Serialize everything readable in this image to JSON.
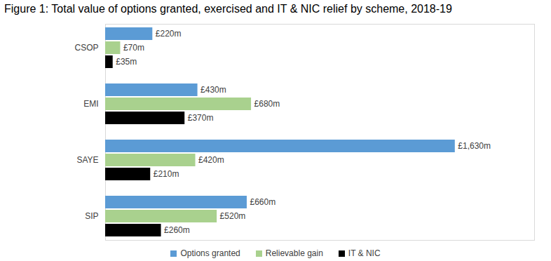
{
  "chart_data": {
    "type": "bar",
    "orientation": "horizontal",
    "title": "Figure 1: Total value of options granted, exercised and IT & NIC relief by scheme, 2018-19",
    "categories": [
      "CSOP",
      "EMI",
      "SAYE",
      "SIP"
    ],
    "series": [
      {
        "name": "Options granted",
        "color": "#5b9bd5",
        "values": [
          220,
          430,
          1630,
          660
        ],
        "value_labels": [
          "£220m",
          "£430m",
          "£1,630m",
          "£660m"
        ]
      },
      {
        "name": "Relievable gain",
        "color": "#a9d18e",
        "values": [
          70,
          680,
          420,
          520
        ],
        "value_labels": [
          "£70m",
          "£680m",
          "£420m",
          "£520m"
        ]
      },
      {
        "name": "IT & NIC",
        "color": "#000000",
        "values": [
          35,
          370,
          210,
          260
        ],
        "value_labels": [
          "£35m",
          "£370m",
          "£210m",
          "£260m"
        ]
      }
    ],
    "xlim": [
      0,
      2000
    ],
    "data_labels": true,
    "tick_labels": "y",
    "legend": "bottom",
    "grid": false
  }
}
